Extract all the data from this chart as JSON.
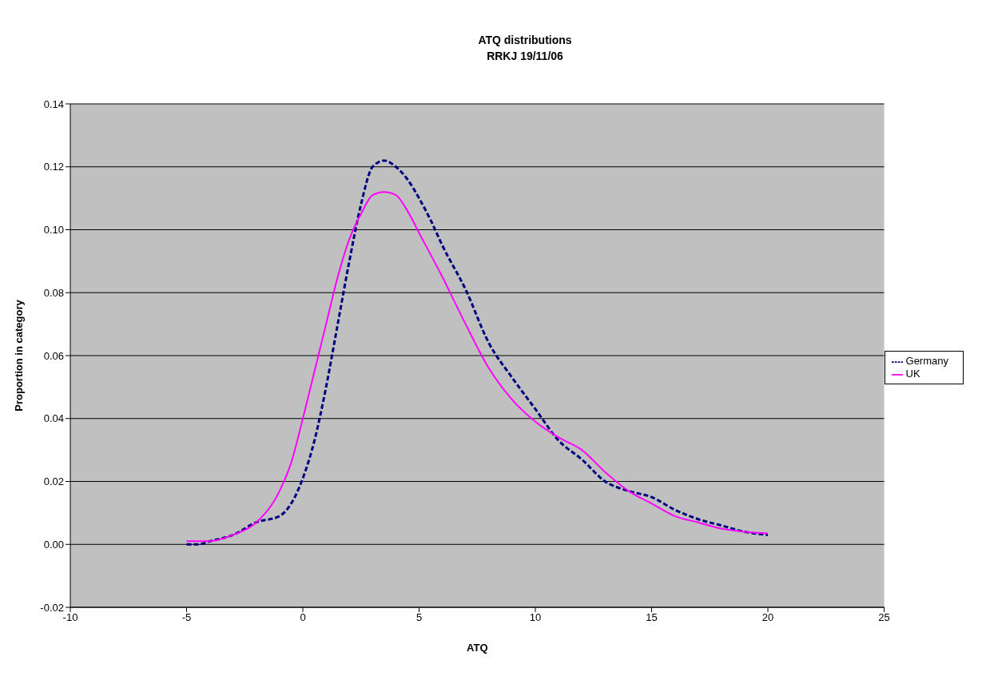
{
  "chart_data": {
    "type": "line",
    "title": "ATQ distributions",
    "subtitle": "RRKJ 19/11/06",
    "xlabel": "ATQ",
    "ylabel": "Proportion in category",
    "xlim": [
      -10,
      25
    ],
    "xticks": [
      -10,
      -5,
      0,
      5,
      10,
      15,
      20,
      25
    ],
    "ylim": [
      -0.02,
      0.14
    ],
    "yticks": [
      {
        "value": -0.02,
        "label": "-0.02"
      },
      {
        "value": 0,
        "label": "0.00"
      },
      {
        "value": 0.02,
        "label": "0.02"
      },
      {
        "value": 0.04,
        "label": "0.04"
      },
      {
        "value": 0.06,
        "label": "0.06"
      },
      {
        "value": 0.08,
        "label": "0.08"
      },
      {
        "value": 0.1,
        "label": "0.10"
      },
      {
        "value": 0.12,
        "label": "0.12"
      },
      {
        "value": 0.14,
        "label": "0.14"
      }
    ],
    "grid": "y",
    "legend": "right",
    "marker": "none",
    "series": [
      {
        "name": "Germany",
        "color": "#000080",
        "line_style": "dashed",
        "x": [
          -5,
          -4.5,
          -4,
          -3,
          -2,
          -1,
          -0.5,
          0,
          0.5,
          1,
          1.5,
          2,
          2.5,
          3,
          3.5,
          4,
          4.5,
          5,
          5.5,
          6,
          7,
          8,
          9,
          10,
          11,
          12,
          13,
          14,
          15,
          16,
          17,
          18,
          19,
          20
        ],
        "values": [
          0,
          0,
          0.001,
          0.003,
          0.007,
          0.009,
          0.013,
          0.021,
          0.033,
          0.05,
          0.07,
          0.09,
          0.108,
          0.12,
          0.122,
          0.12,
          0.116,
          0.11,
          0.103,
          0.095,
          0.081,
          0.064,
          0.053,
          0.043,
          0.033,
          0.027,
          0.02,
          0.017,
          0.015,
          0.011,
          0.008,
          0.006,
          0.004,
          0.003
        ]
      },
      {
        "name": "UK",
        "color": "#ff00ff",
        "line_style": "solid",
        "x": [
          -5,
          -4,
          -3,
          -2,
          -1,
          -0.5,
          0,
          0.5,
          1,
          1.5,
          2,
          2.5,
          3,
          3.5,
          4,
          4.5,
          5,
          6,
          7,
          8,
          9,
          10,
          11,
          12,
          13,
          14,
          15,
          16,
          17,
          18,
          19,
          20
        ],
        "values": [
          0.001,
          0.001,
          0.003,
          0.007,
          0.017,
          0.026,
          0.04,
          0.055,
          0.07,
          0.085,
          0.097,
          0.105,
          0.111,
          0.112,
          0.111,
          0.106,
          0.099,
          0.085,
          0.07,
          0.056,
          0.046,
          0.039,
          0.034,
          0.03,
          0.023,
          0.017,
          0.013,
          0.009,
          0.007,
          0.005,
          0.004,
          0.0035
        ]
      }
    ]
  }
}
